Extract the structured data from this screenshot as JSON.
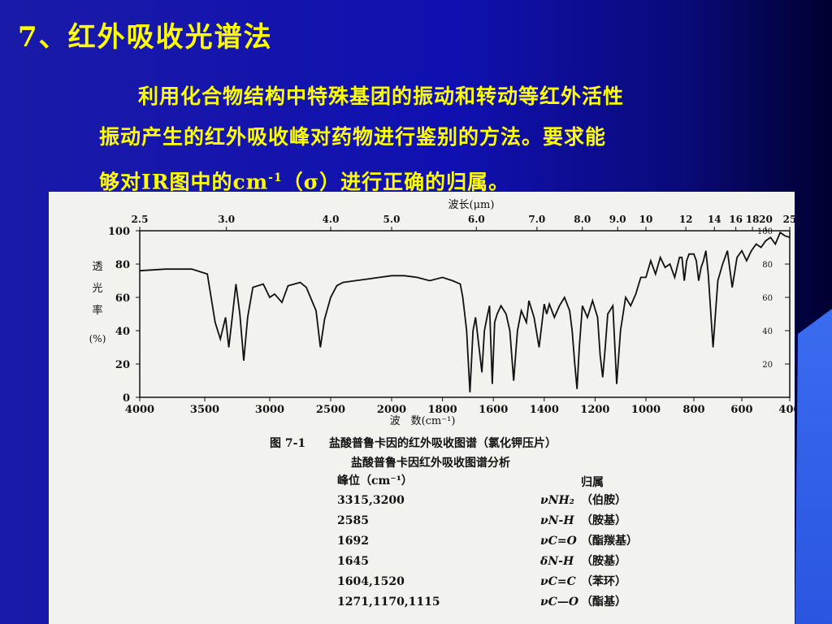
{
  "slide": {
    "title": "7、红外吸收光谱法",
    "para_line1": "利用化合物结构中特殊基团的振动和转动等红外活性",
    "para_line2": "振动产生的红外吸收峰对药物进行鉴别的方法。要求能",
    "para_line3_pre": "够对IR图中的cm",
    "para_line3_sup": "-1",
    "para_line3_post": "（σ）进行正确的归属。"
  },
  "figure": {
    "caption_no": "图 7-1",
    "caption": "盐酸普鲁卡因的红外吸收图谱（氯化钾压片）",
    "subcaption": "盐酸普鲁卡因红外吸收图谱分析",
    "table_head_left": "峰位（cm⁻¹）",
    "table_head_right": "归属",
    "rows": [
      {
        "peak": "3315,3200",
        "sym": "νNH₂",
        "assign": "（伯胺）"
      },
      {
        "peak": "2585",
        "sym": "νN-H",
        "assign": "（胺基）"
      },
      {
        "peak": "1692",
        "sym": "νC=O",
        "assign": "（酯羰基）"
      },
      {
        "peak": "1645",
        "sym": "δN-H",
        "assign": "（胺基）"
      },
      {
        "peak": "1604,1520",
        "sym": "νC=C",
        "assign": "（苯环）"
      },
      {
        "peak": "1271,1170,1115",
        "sym": "νC—O",
        "assign": "（酯基）"
      }
    ]
  },
  "chart_data": {
    "type": "line",
    "xlabel": "波　数(cm⁻¹)",
    "x2label": "波长(μm)",
    "ylabel": "透光率(%)",
    "x_ticks": [
      4000,
      3500,
      3000,
      2500,
      2000,
      1800,
      1600,
      1400,
      1200,
      1000,
      800,
      600,
      400
    ],
    "x2_ticks": [
      "2.5",
      "3.0",
      "4.0",
      "5.0",
      "6.0",
      "7.0",
      "8.0",
      "9.0",
      "10",
      "12",
      "14",
      "16",
      "18",
      "20",
      "25"
    ],
    "y_ticks": [
      0,
      20,
      40,
      60,
      80,
      100
    ],
    "y_right_ticks": [
      20,
      40,
      60,
      80,
      100
    ],
    "ylim": [
      0,
      100
    ],
    "grid": false,
    "series": [
      {
        "x": [
          4000,
          3800,
          3600,
          3480,
          3420,
          3380,
          3340,
          3315,
          3290,
          3260,
          3230,
          3200,
          3170,
          3130,
          3050,
          3000,
          2960,
          2900,
          2850,
          2800,
          2750,
          2700,
          2620,
          2585,
          2550,
          2500,
          2450,
          2400,
          2300,
          2200,
          2100,
          2000,
          1950,
          1900,
          1850,
          1800,
          1760,
          1730,
          1720,
          1705,
          1692,
          1680,
          1670,
          1660,
          1645,
          1635,
          1625,
          1615,
          1604,
          1595,
          1585,
          1570,
          1550,
          1535,
          1520,
          1505,
          1490,
          1470,
          1460,
          1440,
          1420,
          1400,
          1390,
          1380,
          1360,
          1340,
          1320,
          1300,
          1290,
          1280,
          1271,
          1262,
          1250,
          1230,
          1210,
          1190,
          1180,
          1170,
          1160,
          1150,
          1130,
          1115,
          1100,
          1080,
          1060,
          1040,
          1020,
          1000,
          980,
          960,
          940,
          920,
          900,
          880,
          860,
          850,
          840,
          830,
          820,
          800,
          790,
          780,
          770,
          760,
          750,
          740,
          720,
          700,
          680,
          660,
          640,
          620,
          600,
          580,
          560,
          540,
          520,
          500,
          480,
          460,
          440,
          420,
          400
        ],
        "y": [
          76,
          77,
          77,
          74,
          45,
          35,
          48,
          30,
          47,
          68,
          50,
          22,
          48,
          66,
          68,
          60,
          62,
          57,
          67,
          68,
          69,
          66,
          52,
          30,
          47,
          60,
          67,
          69,
          70,
          71,
          72,
          73,
          73,
          72,
          70,
          72,
          70,
          68,
          60,
          40,
          3,
          40,
          48,
          35,
          15,
          40,
          48,
          55,
          8,
          45,
          50,
          55,
          50,
          40,
          10,
          40,
          52,
          45,
          58,
          48,
          30,
          56,
          50,
          56,
          48,
          55,
          60,
          52,
          40,
          20,
          5,
          30,
          55,
          48,
          58,
          48,
          25,
          12,
          30,
          50,
          55,
          8,
          40,
          60,
          55,
          62,
          72,
          72,
          82,
          74,
          84,
          78,
          80,
          72,
          84,
          84,
          70,
          82,
          86,
          86,
          82,
          70,
          78,
          82,
          88,
          74,
          30,
          70,
          80,
          88,
          66,
          84,
          88,
          82,
          88,
          92,
          90,
          94,
          96,
          92,
          99,
          97,
          96
        ]
      }
    ]
  }
}
